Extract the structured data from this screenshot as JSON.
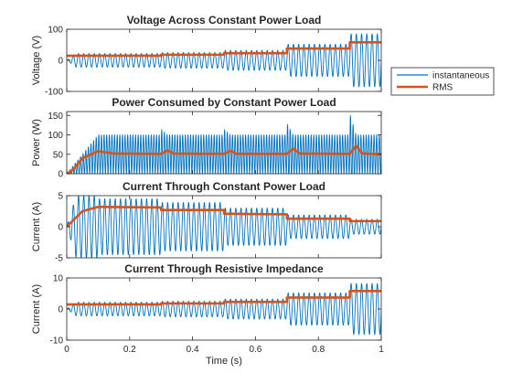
{
  "legend": {
    "instantaneous_label": "instantaneous",
    "rms_label": "RMS",
    "instantaneous_color": "#0072BD",
    "rms_color": "#D95319",
    "placement": "right, outside axes"
  },
  "chart_data": [
    {
      "type": "line",
      "title": "Voltage Across Constant Power Load",
      "xlabel": "",
      "ylabel": "Voltage (V)",
      "xlim": [
        0,
        1
      ],
      "ylim": [
        -100,
        100
      ],
      "yticks": [
        "-100",
        "0",
        "100"
      ],
      "xticks": [
        "",
        "",
        "",
        "",
        "",
        ""
      ],
      "grid": false,
      "series": [
        {
          "name": "instantaneous",
          "kind": "sine",
          "freq_hz": 60,
          "amplitude_segments": [
            {
              "x": [
                0.0,
                0.3
              ],
              "amplitude": 22
            },
            {
              "x": [
                0.3,
                0.5
              ],
              "amplitude": 25
            },
            {
              "x": [
                0.5,
                0.7
              ],
              "amplitude": 32
            },
            {
              "x": [
                0.7,
                0.9
              ],
              "amplitude": 52
            },
            {
              "x": [
                0.9,
                1.0
              ],
              "amplitude": 85
            }
          ]
        },
        {
          "name": "RMS",
          "x": [
            0,
            0.3,
            0.3,
            0.5,
            0.5,
            0.7,
            0.7,
            0.9,
            0.9,
            1.0
          ],
          "y": [
            15,
            15,
            18,
            18,
            23,
            23,
            38,
            38,
            58,
            58
          ]
        }
      ]
    },
    {
      "type": "line",
      "title": "Power Consumed by Constant Power Load",
      "xlabel": "",
      "ylabel": "Power (W)",
      "xlim": [
        0,
        1
      ],
      "ylim": [
        0,
        160
      ],
      "yticks": [
        "0",
        "50",
        "100",
        "150"
      ],
      "xticks": [
        "",
        "",
        "",
        "",
        "",
        ""
      ],
      "grid": false,
      "series": [
        {
          "name": "instantaneous",
          "kind": "power_ripple",
          "freq_hz": 120,
          "steady_mean": 50,
          "steady_amplitude": 50,
          "spikes": [
            {
              "x": 0.3,
              "peak": 115
            },
            {
              "x": 0.5,
              "peak": 115
            },
            {
              "x": 0.7,
              "peak": 130
            },
            {
              "x": 0.9,
              "peak": 155
            }
          ]
        },
        {
          "name": "RMS",
          "x": [
            0,
            0.02,
            0.05,
            0.1,
            0.15,
            0.3,
            0.32,
            0.34,
            0.5,
            0.52,
            0.54,
            0.7,
            0.72,
            0.74,
            0.9,
            0.92,
            0.94,
            1.0
          ],
          "y": [
            0,
            10,
            40,
            58,
            52,
            51,
            60,
            52,
            51,
            59,
            51,
            51,
            65,
            52,
            51,
            72,
            52,
            50
          ]
        }
      ]
    },
    {
      "type": "line",
      "title": "Current Through Constant Power Load",
      "xlabel": "",
      "ylabel": "Current (A)",
      "xlim": [
        0,
        1
      ],
      "ylim": [
        -5,
        5
      ],
      "yticks": [
        "-5",
        "0",
        "5"
      ],
      "xticks": [
        "",
        "",
        "",
        "",
        "",
        ""
      ],
      "grid": false,
      "series": [
        {
          "name": "instantaneous",
          "kind": "sine",
          "freq_hz": 60,
          "amplitude_segments": [
            {
              "x": [
                0.0,
                0.1
              ],
              "amplitude": 5
            },
            {
              "x": [
                0.1,
                0.3
              ],
              "amplitude": 4.5
            },
            {
              "x": [
                0.3,
                0.5
              ],
              "amplitude": 3.9
            },
            {
              "x": [
                0.5,
                0.7
              ],
              "amplitude": 3.0
            },
            {
              "x": [
                0.7,
                0.9
              ],
              "amplitude": 1.9
            },
            {
              "x": [
                0.9,
                1.0
              ],
              "amplitude": 1.2
            }
          ]
        },
        {
          "name": "RMS",
          "x": [
            0,
            0.01,
            0.05,
            0.1,
            0.3,
            0.3,
            0.5,
            0.5,
            0.7,
            0.7,
            0.9,
            0.9,
            1.0
          ],
          "y": [
            0,
            0.5,
            2.5,
            3.2,
            3.1,
            2.7,
            2.7,
            2.1,
            2.0,
            1.3,
            1.3,
            0.9,
            0.9
          ]
        }
      ]
    },
    {
      "type": "line",
      "title": "Current Through Resistive Impedance",
      "xlabel": "Time (s)",
      "ylabel": "Current (A)",
      "xlim": [
        0,
        1
      ],
      "ylim": [
        -10,
        10
      ],
      "yticks": [
        "-10",
        "0",
        "10"
      ],
      "xticks": [
        "0",
        "0.2",
        "0.4",
        "0.6",
        "0.8",
        "1"
      ],
      "grid": false,
      "series": [
        {
          "name": "instantaneous",
          "kind": "sine",
          "freq_hz": 60,
          "amplitude_segments": [
            {
              "x": [
                0.0,
                0.3
              ],
              "amplitude": 2.2
            },
            {
              "x": [
                0.3,
                0.5
              ],
              "amplitude": 2.5
            },
            {
              "x": [
                0.5,
                0.7
              ],
              "amplitude": 3.2
            },
            {
              "x": [
                0.7,
                0.9
              ],
              "amplitude": 5.2
            },
            {
              "x": [
                0.9,
                1.0
              ],
              "amplitude": 8.2
            }
          ]
        },
        {
          "name": "RMS",
          "x": [
            0,
            0.3,
            0.3,
            0.5,
            0.5,
            0.7,
            0.7,
            0.9,
            0.9,
            1.0
          ],
          "y": [
            1.5,
            1.5,
            1.8,
            1.8,
            2.3,
            2.3,
            3.7,
            3.7,
            5.8,
            5.8
          ]
        }
      ]
    }
  ]
}
